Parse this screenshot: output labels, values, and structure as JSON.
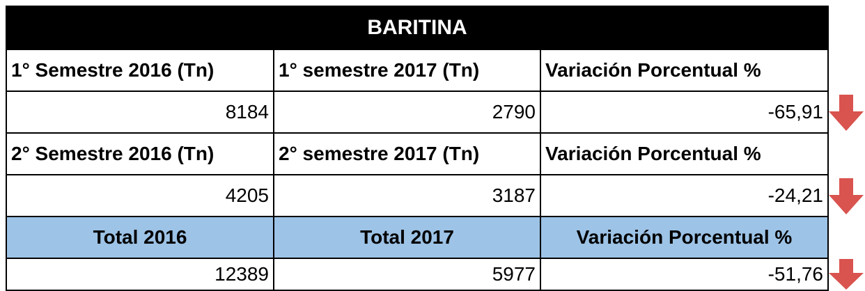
{
  "title": "BARITINA",
  "sections": [
    {
      "headers": [
        "1° Semestre 2016 (Tn)",
        "1° semestre 2017 (Tn)",
        "Variación Porcentual %"
      ],
      "values": [
        8184,
        2790,
        "-65,91"
      ]
    },
    {
      "headers": [
        "2° Semestre 2016 (Tn)",
        "2° semestre 2017 (Tn)",
        "Variación Porcentual %"
      ],
      "values": [
        4205,
        3187,
        "-24,21"
      ]
    },
    {
      "headers": [
        "Total 2016",
        "Total 2017",
        "Variación Porcentual %"
      ],
      "values": [
        12389,
        5977,
        "-51,76"
      ]
    }
  ]
}
